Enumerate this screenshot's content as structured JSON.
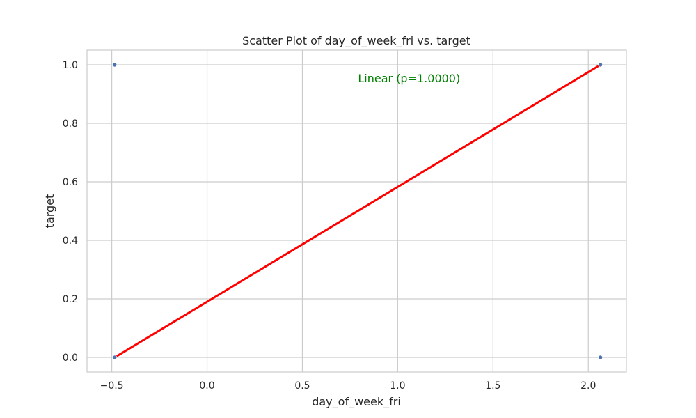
{
  "chart_data": {
    "type": "scatter",
    "title": "Scatter Plot of day_of_week_fri vs. target",
    "xlabel": "day_of_week_fri",
    "ylabel": "target",
    "xlim": [
      -0.63,
      2.2
    ],
    "ylim": [
      -0.05,
      1.05
    ],
    "xticks": [
      -0.5,
      0.0,
      0.5,
      1.0,
      1.5,
      2.0
    ],
    "xtick_labels": [
      "−0.5",
      "0.0",
      "0.5",
      "1.0",
      "1.5",
      "2.0"
    ],
    "yticks": [
      0.0,
      0.2,
      0.4,
      0.6,
      0.8,
      1.0
    ],
    "ytick_labels": [
      "0.0",
      "0.2",
      "0.4",
      "0.6",
      "0.8",
      "1.0"
    ],
    "grid": true,
    "points": [
      {
        "x": -0.4845,
        "y": 1.0
      },
      {
        "x": -0.4845,
        "y": 0.0
      },
      {
        "x": 2.0637,
        "y": 1.0
      },
      {
        "x": 2.0637,
        "y": 0.0
      }
    ],
    "fit_line": {
      "x": [
        -0.4845,
        2.0637
      ],
      "y": [
        0.0,
        1.0
      ]
    },
    "annotation": {
      "text": "Linear (p=1.0000)",
      "x": 1.06,
      "y": 0.955
    },
    "colors": {
      "points": "#4c72b0",
      "fit_line": "#ff0000",
      "annotation": "#008000",
      "grid": "#cccccc",
      "frame": "#cccccc",
      "text": "#262626"
    }
  }
}
